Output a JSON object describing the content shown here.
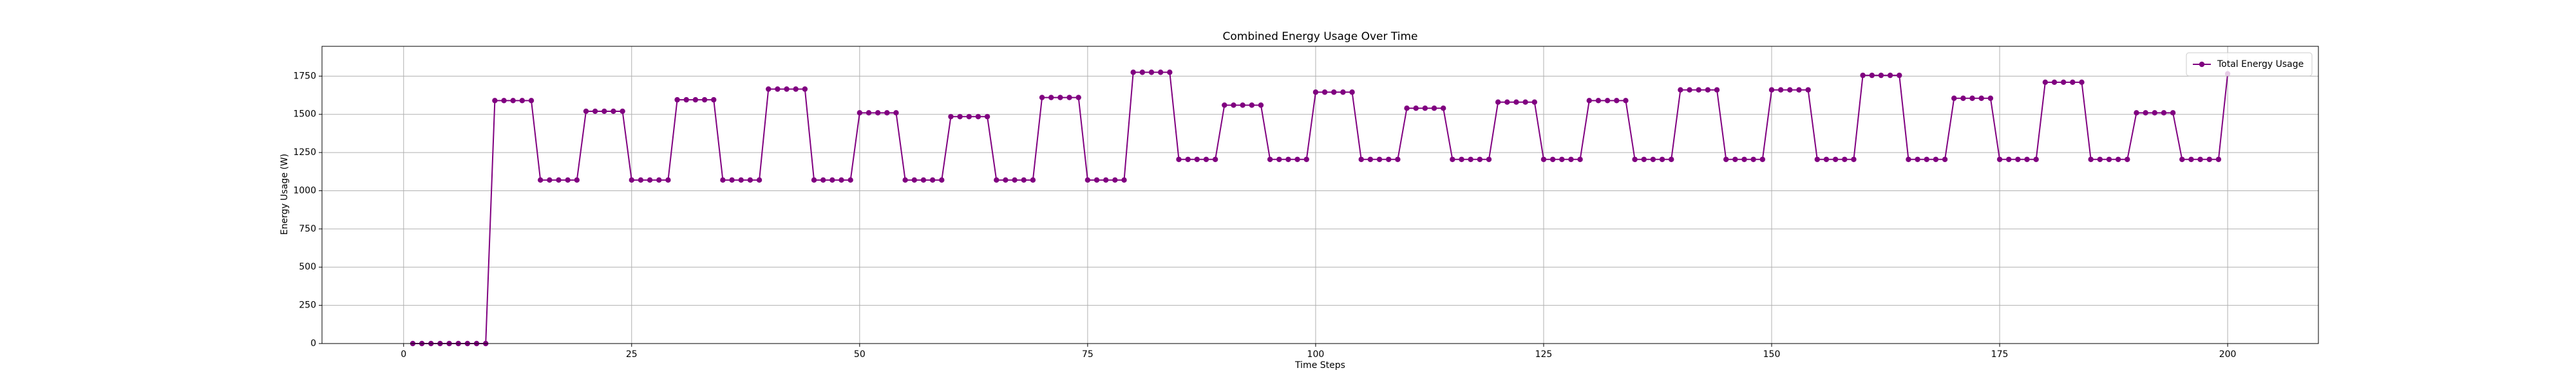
{
  "chart_data": {
    "type": "line",
    "title": "Combined Energy Usage Over Time",
    "xlabel": "Time Steps",
    "ylabel": "Energy Usage (W)",
    "x": [
      1,
      2,
      3,
      4,
      5,
      6,
      7,
      8,
      9,
      10,
      11,
      12,
      13,
      14,
      15,
      16,
      17,
      18,
      19,
      20,
      21,
      22,
      23,
      24,
      25,
      26,
      27,
      28,
      29,
      30,
      31,
      32,
      33,
      34,
      35,
      36,
      37,
      38,
      39,
      40,
      41,
      42,
      43,
      44,
      45,
      46,
      47,
      48,
      49,
      50,
      51,
      52,
      53,
      54,
      55,
      56,
      57,
      58,
      59,
      60,
      61,
      62,
      63,
      64,
      65,
      66,
      67,
      68,
      69,
      70,
      71,
      72,
      73,
      74,
      75,
      76,
      77,
      78,
      79,
      80,
      81,
      82,
      83,
      84,
      85,
      86,
      87,
      88,
      89,
      90,
      91,
      92,
      93,
      94,
      95,
      96,
      97,
      98,
      99,
      100,
      101,
      102,
      103,
      104,
      105,
      106,
      107,
      108,
      109,
      110,
      111,
      112,
      113,
      114,
      115,
      116,
      117,
      118,
      119,
      120,
      121,
      122,
      123,
      124,
      125,
      126,
      127,
      128,
      129,
      130,
      131,
      132,
      133,
      134,
      135,
      136,
      137,
      138,
      139,
      140,
      141,
      142,
      143,
      144,
      145,
      146,
      147,
      148,
      149,
      150,
      151,
      152,
      153,
      154,
      155,
      156,
      157,
      158,
      159,
      160,
      161,
      162,
      163,
      164,
      165,
      166,
      167,
      168,
      169,
      170,
      171,
      172,
      173,
      174,
      175,
      176,
      177,
      178,
      179,
      180,
      181,
      182,
      183,
      184,
      185,
      186,
      187,
      188,
      189,
      190,
      191,
      192,
      193,
      194,
      195,
      196,
      197,
      198,
      199,
      200
    ],
    "series": [
      {
        "name": "Total Energy Usage",
        "color": "#800080",
        "values": [
          0,
          0,
          0,
          0,
          0,
          0,
          0,
          0,
          0,
          1590,
          1590,
          1590,
          1590,
          1590,
          1070,
          1070,
          1070,
          1070,
          1070,
          1520,
          1520,
          1520,
          1520,
          1520,
          1070,
          1070,
          1070,
          1070,
          1070,
          1595,
          1595,
          1595,
          1595,
          1595,
          1070,
          1070,
          1070,
          1070,
          1070,
          1665,
          1665,
          1665,
          1665,
          1665,
          1070,
          1070,
          1070,
          1070,
          1070,
          1510,
          1510,
          1510,
          1510,
          1510,
          1070,
          1070,
          1070,
          1070,
          1070,
          1485,
          1485,
          1485,
          1485,
          1485,
          1070,
          1070,
          1070,
          1070,
          1070,
          1610,
          1610,
          1610,
          1610,
          1610,
          1070,
          1070,
          1070,
          1070,
          1070,
          1775,
          1775,
          1775,
          1775,
          1775,
          1205,
          1205,
          1205,
          1205,
          1205,
          1560,
          1560,
          1560,
          1560,
          1560,
          1205,
          1205,
          1205,
          1205,
          1205,
          1645,
          1645,
          1645,
          1645,
          1645,
          1205,
          1205,
          1205,
          1205,
          1205,
          1540,
          1540,
          1540,
          1540,
          1540,
          1205,
          1205,
          1205,
          1205,
          1205,
          1580,
          1580,
          1580,
          1580,
          1580,
          1205,
          1205,
          1205,
          1205,
          1205,
          1590,
          1590,
          1590,
          1590,
          1590,
          1205,
          1205,
          1205,
          1205,
          1205,
          1660,
          1660,
          1660,
          1660,
          1660,
          1205,
          1205,
          1205,
          1205,
          1205,
          1660,
          1660,
          1660,
          1660,
          1660,
          1205,
          1205,
          1205,
          1205,
          1205,
          1755,
          1755,
          1755,
          1755,
          1755,
          1205,
          1205,
          1205,
          1205,
          1205,
          1605,
          1605,
          1605,
          1605,
          1605,
          1205,
          1205,
          1205,
          1205,
          1205,
          1710,
          1710,
          1710,
          1710,
          1710,
          1205,
          1205,
          1205,
          1205,
          1205,
          1510,
          1510,
          1510,
          1510,
          1510,
          1205,
          1205,
          1205,
          1205,
          1205,
          1765
        ]
      }
    ],
    "xlim": [
      -8.95,
      209.95
    ],
    "ylim": [
      0,
      1945
    ],
    "xticks": [
      0,
      25,
      50,
      75,
      100,
      125,
      150,
      175,
      200
    ],
    "yticks": [
      0,
      250,
      500,
      750,
      1000,
      1250,
      1500,
      1750
    ],
    "grid": true,
    "legend": "upper right"
  }
}
